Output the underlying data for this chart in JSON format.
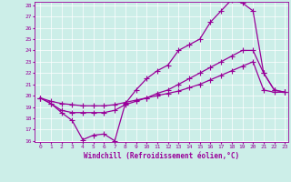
{
  "xlabel": "Windchill (Refroidissement éolien,°C)",
  "bg_color": "#cceee8",
  "grid_color": "#aadddd",
  "line_color": "#990099",
  "xmin": 0,
  "xmax": 23,
  "ymin": 16,
  "ymax": 28,
  "yticks": [
    16,
    17,
    18,
    19,
    20,
    21,
    22,
    23,
    24,
    25,
    26,
    27,
    28
  ],
  "xticks": [
    0,
    1,
    2,
    3,
    4,
    5,
    6,
    7,
    8,
    9,
    10,
    11,
    12,
    13,
    14,
    15,
    16,
    17,
    18,
    19,
    20,
    21,
    22,
    23
  ],
  "line1_x": [
    0,
    1,
    2,
    3,
    4,
    5,
    6,
    7,
    8,
    9,
    10,
    11,
    12,
    13,
    14,
    15,
    16,
    17,
    18,
    19,
    20,
    21,
    22,
    23
  ],
  "line1_y": [
    19.8,
    19.3,
    18.5,
    17.8,
    16.1,
    16.5,
    16.6,
    16.0,
    19.3,
    20.5,
    21.5,
    22.2,
    22.7,
    24.0,
    24.5,
    25.0,
    26.5,
    27.5,
    28.5,
    28.2,
    27.5,
    22.0,
    20.5,
    20.3
  ],
  "line2_x": [
    0,
    1,
    2,
    3,
    4,
    5,
    6,
    7,
    8,
    9,
    10,
    11,
    12,
    13,
    14,
    15,
    16,
    17,
    18,
    19,
    20,
    21,
    22,
    23
  ],
  "line2_y": [
    19.8,
    19.3,
    18.7,
    18.5,
    18.5,
    18.5,
    18.5,
    18.7,
    19.2,
    19.5,
    19.8,
    20.2,
    20.5,
    21.0,
    21.5,
    22.0,
    22.5,
    23.0,
    23.5,
    24.0,
    24.0,
    22.0,
    20.5,
    20.3
  ],
  "line3_x": [
    0,
    1,
    2,
    3,
    4,
    5,
    6,
    7,
    8,
    9,
    10,
    11,
    12,
    13,
    14,
    15,
    16,
    17,
    18,
    19,
    20,
    21,
    22,
    23
  ],
  "line3_y": [
    19.8,
    19.5,
    19.3,
    19.2,
    19.1,
    19.1,
    19.1,
    19.2,
    19.4,
    19.6,
    19.8,
    20.0,
    20.2,
    20.4,
    20.7,
    21.0,
    21.4,
    21.8,
    22.2,
    22.6,
    23.0,
    20.5,
    20.3,
    20.3
  ],
  "xlabel_fontsize": 5.5,
  "tick_fontsize": 4.5
}
